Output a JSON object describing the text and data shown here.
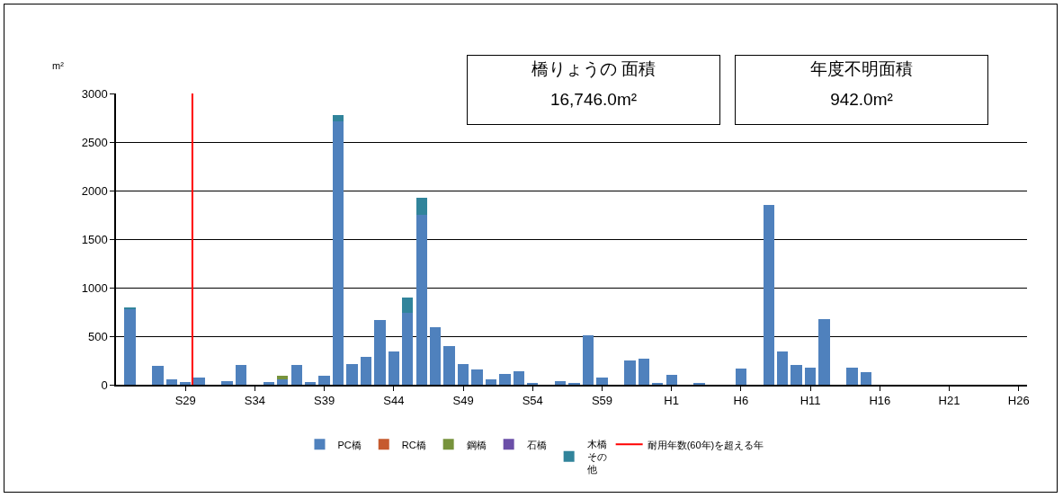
{
  "chart_data": {
    "type": "bar",
    "stacked": true,
    "ylabel": "m²",
    "categories": [
      null,
      null,
      null,
      null,
      "S29",
      null,
      null,
      null,
      null,
      "S34",
      null,
      null,
      null,
      null,
      "S39",
      null,
      null,
      null,
      null,
      "S44",
      null,
      null,
      null,
      null,
      "S49",
      null,
      null,
      null,
      null,
      "S54",
      null,
      null,
      null,
      null,
      "S59",
      null,
      null,
      null,
      null,
      "H1",
      null,
      null,
      null,
      null,
      "H6",
      null,
      null,
      null,
      null,
      "H11",
      null,
      null,
      null,
      null,
      "H16",
      null,
      null,
      null,
      null,
      "H21",
      null,
      null,
      null,
      null,
      "H26"
    ],
    "series": [
      {
        "name": "PC橋",
        "color": "#4f81bd",
        "values": [
          780,
          null,
          190,
          60,
          30,
          70,
          null,
          40,
          200,
          null,
          30,
          60,
          200,
          30,
          90,
          2710,
          210,
          290,
          670,
          340,
          740,
          1750,
          590,
          400,
          210,
          160,
          60,
          110,
          140,
          20,
          null,
          40,
          10,
          510,
          70,
          null,
          250,
          270,
          10,
          100,
          null,
          10,
          null,
          null,
          170,
          null,
          1850,
          340,
          200,
          180,
          680,
          null,
          180,
          130,
          null,
          null,
          null,
          null,
          null,
          null,
          null,
          null,
          null,
          null,
          null
        ]
      },
      {
        "name": "RC橋",
        "color": "#c65a2e",
        "values": [
          null,
          null,
          null,
          null,
          null,
          null,
          null,
          null,
          null,
          null,
          null,
          null,
          null,
          null,
          null,
          null,
          null,
          null,
          null,
          null,
          null,
          null,
          null,
          null,
          null,
          null,
          null,
          null,
          null,
          null,
          null,
          null,
          null,
          null,
          null,
          null,
          null,
          null,
          null,
          null,
          null,
          null,
          null,
          null,
          null,
          null,
          null,
          null,
          null,
          null,
          null,
          null,
          null,
          null,
          null,
          null,
          null,
          null,
          null,
          null,
          null,
          null,
          null,
          null,
          null
        ]
      },
      {
        "name": "鋼橋",
        "color": "#77933c",
        "values": [
          null,
          null,
          null,
          null,
          null,
          null,
          null,
          null,
          null,
          null,
          null,
          30,
          null,
          null,
          null,
          null,
          null,
          null,
          null,
          null,
          null,
          null,
          null,
          null,
          null,
          null,
          null,
          null,
          null,
          null,
          null,
          null,
          null,
          null,
          null,
          null,
          null,
          null,
          null,
          null,
          null,
          null,
          null,
          null,
          null,
          null,
          null,
          null,
          null,
          null,
          null,
          null,
          null,
          null,
          null,
          null,
          null,
          null,
          null,
          null,
          null,
          null,
          null,
          null,
          null
        ]
      },
      {
        "name": "石橋",
        "color": "#6b4fa8",
        "values": [
          null,
          null,
          null,
          null,
          null,
          null,
          null,
          null,
          null,
          null,
          null,
          null,
          null,
          null,
          null,
          null,
          null,
          null,
          null,
          null,
          null,
          null,
          null,
          null,
          null,
          null,
          null,
          null,
          null,
          null,
          null,
          null,
          null,
          null,
          null,
          null,
          null,
          null,
          null,
          null,
          null,
          null,
          null,
          null,
          null,
          null,
          null,
          null,
          null,
          null,
          null,
          null,
          null,
          null,
          null,
          null,
          null,
          null,
          null,
          null,
          null,
          null,
          null,
          null,
          null
        ]
      },
      {
        "name": "木橋その他",
        "color": "#31849b",
        "values": [
          20,
          null,
          null,
          null,
          null,
          null,
          null,
          null,
          null,
          null,
          null,
          null,
          null,
          null,
          null,
          70,
          null,
          null,
          null,
          null,
          160,
          180,
          null,
          null,
          null,
          null,
          null,
          null,
          null,
          null,
          null,
          null,
          null,
          null,
          null,
          null,
          null,
          null,
          null,
          null,
          null,
          null,
          null,
          null,
          null,
          null,
          null,
          null,
          null,
          null,
          null,
          null,
          null,
          null,
          null,
          null,
          null,
          null,
          null,
          null,
          null,
          null,
          null,
          null,
          null
        ]
      }
    ],
    "ylim": [
      0,
      3000
    ],
    "yticks": [
      0,
      500,
      1000,
      1500,
      2000,
      2500,
      3000
    ],
    "grid": "y",
    "legend": "bottom",
    "ref_lines": [
      {
        "axis": "x",
        "value": "S29",
        "label": "耐用年数(60年)を超える年",
        "color": "#ff0000"
      }
    ],
    "annotations": [
      "橋りょうの 面積\n16,746.0m²",
      "年度不明面積\n942.0m²"
    ]
  }
}
